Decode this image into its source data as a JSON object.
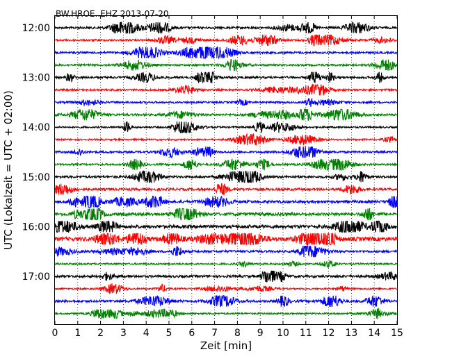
{
  "chart_data": {
    "type": "line",
    "title": "BW.HROE..EHZ 2013-07-20",
    "xlabel": "Zeit  [min]",
    "ylabel": "UTC (Lokalzeit = UTC + 02:00)",
    "xlim": [
      0,
      15
    ],
    "x_ticks": [
      "0",
      "1",
      "2",
      "3",
      "4",
      "5",
      "6",
      "7",
      "8",
      "9",
      "10",
      "11",
      "12",
      "13",
      "14",
      "15"
    ],
    "y_ticks": [
      "12:00",
      "13:00",
      "14:00",
      "15:00",
      "16:00",
      "17:00"
    ],
    "x_grid": true,
    "traces_per_hour": 4,
    "trace_colors": [
      "#000000",
      "#ff0000",
      "#0000ff",
      "#008000"
    ],
    "traces": [
      {
        "start": "12:00",
        "amplitude": 0.25
      },
      {
        "start": "12:15",
        "amplitude": 0.2
      },
      {
        "start": "12:30",
        "amplitude": 0.25
      },
      {
        "start": "12:45",
        "amplitude": 0.2
      },
      {
        "start": "13:00",
        "amplitude": 0.25
      },
      {
        "start": "13:15",
        "amplitude": 0.2
      },
      {
        "start": "13:30",
        "amplitude": 0.2
      },
      {
        "start": "13:45",
        "amplitude": 0.3
      },
      {
        "start": "14:00",
        "amplitude": 0.15
      },
      {
        "start": "14:15",
        "amplitude": 0.15
      },
      {
        "start": "14:30",
        "amplitude": 0.25
      },
      {
        "start": "14:45",
        "amplitude": 0.2
      },
      {
        "start": "15:00",
        "amplitude": 0.3
      },
      {
        "start": "15:15",
        "amplitude": 0.35
      },
      {
        "start": "15:30",
        "amplitude": 0.4
      },
      {
        "start": "15:45",
        "amplitude": 0.5
      },
      {
        "start": "16:00",
        "amplitude": 0.55
      },
      {
        "start": "16:15",
        "amplitude": 0.7
      },
      {
        "start": "16:30",
        "amplitude": 0.3
      },
      {
        "start": "16:45",
        "amplitude": 0.15
      },
      {
        "start": "17:00",
        "amplitude": 0.35
      },
      {
        "start": "17:15",
        "amplitude": 0.12
      },
      {
        "start": "17:30",
        "amplitude": 0.3
      },
      {
        "start": "17:45",
        "amplitude": 0.15
      }
    ]
  }
}
